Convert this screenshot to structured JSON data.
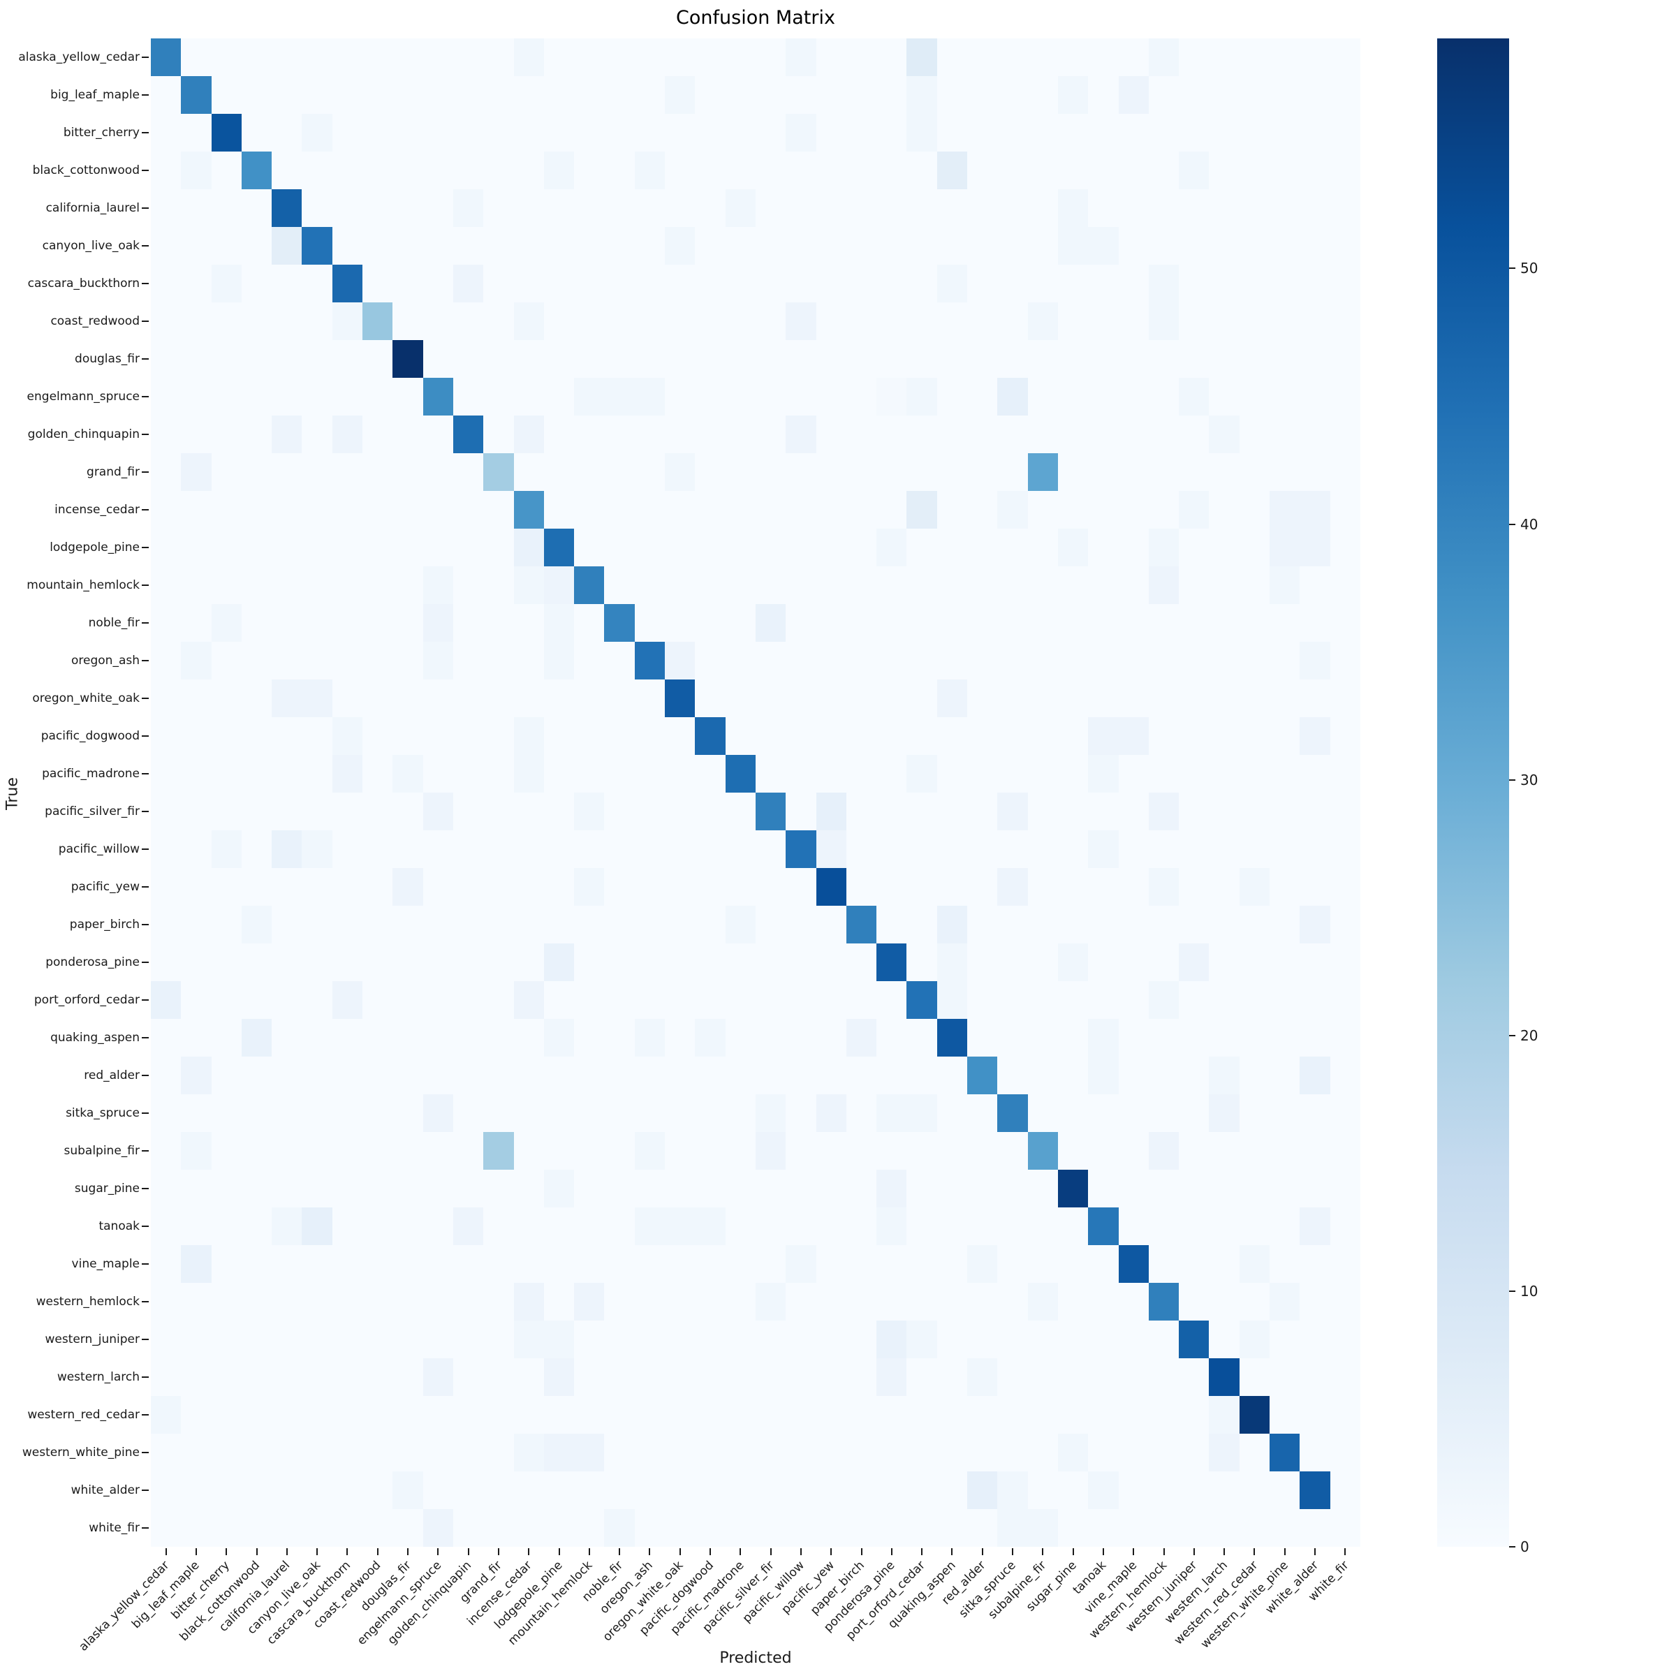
{
  "title": "Confusion Matrix",
  "xlabel": "Predicted",
  "ylabel": "True",
  "colors": {
    "background": "#ffffff",
    "text": "#1a1a1a",
    "colormap_low": "#f7fbff",
    "colormap_high": "#08306b"
  },
  "chart_data": {
    "type": "heatmap",
    "title": "Confusion Matrix",
    "xlabel": "Predicted",
    "ylabel": "True",
    "colormap": "Blues",
    "vmin": 0,
    "vmax": 59,
    "grid": false,
    "colorbar_position": "right",
    "colorbar_ticks": [
      0,
      10,
      20,
      30,
      40,
      50
    ],
    "labels": [
      "alaska_yellow_cedar",
      "big_leaf_maple",
      "bitter_cherry",
      "black_cottonwood",
      "california_laurel",
      "canyon_live_oak",
      "cascara_buckthorn",
      "coast_redwood",
      "douglas_fir",
      "engelmann_spruce",
      "golden_chinquapin",
      "grand_fir",
      "incense_cedar",
      "lodgepole_pine",
      "mountain_hemlock",
      "noble_fir",
      "oregon_ash",
      "oregon_white_oak",
      "pacific_dogwood",
      "pacific_madrone",
      "pacific_silver_fir",
      "pacific_willow",
      "pacific_yew",
      "paper_birch",
      "ponderosa_pine",
      "port_orford_cedar",
      "quaking_aspen",
      "red_alder",
      "sitka_spruce",
      "subalpine_fir",
      "sugar_pine",
      "tanoak",
      "vine_maple",
      "western_hemlock",
      "western_juniper",
      "western_larch",
      "western_red_cedar",
      "western_white_pine",
      "white_alder",
      "white_fir"
    ],
    "diagonal": [
      41,
      41,
      51,
      37,
      48,
      44,
      46,
      23,
      59,
      38,
      45,
      21,
      36,
      45,
      41,
      40,
      44,
      49,
      46,
      45,
      41,
      44,
      52,
      41,
      49,
      44,
      50,
      37,
      41,
      33,
      56,
      43,
      50,
      41,
      48,
      52,
      57,
      47,
      49,
      0
    ],
    "off_diagonal": [
      [
        0,
        12,
        2
      ],
      [
        0,
        21,
        2
      ],
      [
        0,
        25,
        7
      ],
      [
        0,
        33,
        2
      ],
      [
        1,
        17,
        2
      ],
      [
        1,
        25,
        2
      ],
      [
        1,
        30,
        2
      ],
      [
        1,
        32,
        3
      ],
      [
        2,
        5,
        2
      ],
      [
        2,
        21,
        2
      ],
      [
        2,
        25,
        2
      ],
      [
        3,
        1,
        2
      ],
      [
        3,
        13,
        2
      ],
      [
        3,
        16,
        2
      ],
      [
        3,
        26,
        6
      ],
      [
        3,
        34,
        2
      ],
      [
        4,
        10,
        2
      ],
      [
        4,
        19,
        2
      ],
      [
        4,
        30,
        2
      ],
      [
        5,
        4,
        6
      ],
      [
        5,
        17,
        2
      ],
      [
        5,
        30,
        2
      ],
      [
        5,
        31,
        2
      ],
      [
        6,
        2,
        2
      ],
      [
        6,
        10,
        3
      ],
      [
        6,
        26,
        2
      ],
      [
        6,
        33,
        2
      ],
      [
        7,
        6,
        2
      ],
      [
        7,
        12,
        2
      ],
      [
        7,
        21,
        3
      ],
      [
        7,
        29,
        2
      ],
      [
        7,
        33,
        2
      ],
      [
        9,
        14,
        2
      ],
      [
        9,
        15,
        2
      ],
      [
        9,
        16,
        2
      ],
      [
        9,
        24,
        1
      ],
      [
        9,
        25,
        2
      ],
      [
        9,
        28,
        5
      ],
      [
        9,
        34,
        2
      ],
      [
        10,
        4,
        3
      ],
      [
        10,
        6,
        3
      ],
      [
        10,
        12,
        3
      ],
      [
        10,
        21,
        3
      ],
      [
        10,
        35,
        2
      ],
      [
        11,
        1,
        3
      ],
      [
        11,
        17,
        2
      ],
      [
        11,
        29,
        32
      ],
      [
        12,
        25,
        6
      ],
      [
        12,
        28,
        2
      ],
      [
        12,
        34,
        2
      ],
      [
        12,
        37,
        3
      ],
      [
        12,
        38,
        3
      ],
      [
        13,
        12,
        4
      ],
      [
        13,
        24,
        2
      ],
      [
        13,
        30,
        2
      ],
      [
        13,
        33,
        2
      ],
      [
        13,
        37,
        3
      ],
      [
        13,
        38,
        3
      ],
      [
        14,
        9,
        2
      ],
      [
        14,
        12,
        2
      ],
      [
        14,
        13,
        3
      ],
      [
        14,
        33,
        3
      ],
      [
        14,
        37,
        2
      ],
      [
        15,
        2,
        2
      ],
      [
        15,
        9,
        3
      ],
      [
        15,
        13,
        2
      ],
      [
        15,
        20,
        4
      ],
      [
        16,
        1,
        2
      ],
      [
        16,
        9,
        2
      ],
      [
        16,
        13,
        2
      ],
      [
        16,
        17,
        3
      ],
      [
        16,
        38,
        2
      ],
      [
        17,
        4,
        3
      ],
      [
        17,
        5,
        3
      ],
      [
        17,
        26,
        3
      ],
      [
        18,
        6,
        2
      ],
      [
        18,
        12,
        2
      ],
      [
        18,
        31,
        3
      ],
      [
        18,
        32,
        3
      ],
      [
        18,
        38,
        3
      ],
      [
        19,
        6,
        3
      ],
      [
        19,
        8,
        2
      ],
      [
        19,
        12,
        2
      ],
      [
        19,
        25,
        2
      ],
      [
        19,
        31,
        2
      ],
      [
        20,
        9,
        3
      ],
      [
        20,
        14,
        2
      ],
      [
        20,
        22,
        5
      ],
      [
        20,
        28,
        3
      ],
      [
        20,
        33,
        3
      ],
      [
        21,
        2,
        2
      ],
      [
        21,
        4,
        4
      ],
      [
        21,
        5,
        2
      ],
      [
        21,
        22,
        3
      ],
      [
        21,
        31,
        2
      ],
      [
        22,
        8,
        3
      ],
      [
        22,
        14,
        2
      ],
      [
        22,
        28,
        3
      ],
      [
        22,
        33,
        2
      ],
      [
        22,
        36,
        2
      ],
      [
        23,
        3,
        2
      ],
      [
        23,
        19,
        2
      ],
      [
        23,
        26,
        4
      ],
      [
        23,
        38,
        3
      ],
      [
        24,
        13,
        4
      ],
      [
        24,
        26,
        2
      ],
      [
        24,
        30,
        2
      ],
      [
        24,
        34,
        3
      ],
      [
        25,
        0,
        4
      ],
      [
        25,
        6,
        3
      ],
      [
        25,
        12,
        3
      ],
      [
        25,
        26,
        2
      ],
      [
        25,
        33,
        2
      ],
      [
        26,
        3,
        4
      ],
      [
        26,
        13,
        2
      ],
      [
        26,
        16,
        2
      ],
      [
        26,
        18,
        2
      ],
      [
        26,
        23,
        3
      ],
      [
        26,
        31,
        2
      ],
      [
        27,
        1,
        3
      ],
      [
        27,
        31,
        2
      ],
      [
        27,
        35,
        2
      ],
      [
        27,
        38,
        4
      ],
      [
        28,
        9,
        3
      ],
      [
        28,
        20,
        2
      ],
      [
        28,
        22,
        3
      ],
      [
        28,
        24,
        2
      ],
      [
        28,
        25,
        2
      ],
      [
        28,
        35,
        3
      ],
      [
        29,
        1,
        2
      ],
      [
        29,
        11,
        21
      ],
      [
        29,
        16,
        2
      ],
      [
        29,
        20,
        3
      ],
      [
        29,
        33,
        3
      ],
      [
        30,
        13,
        2
      ],
      [
        30,
        24,
        3
      ],
      [
        31,
        4,
        2
      ],
      [
        31,
        5,
        5
      ],
      [
        31,
        10,
        3
      ],
      [
        31,
        16,
        2
      ],
      [
        31,
        17,
        2
      ],
      [
        31,
        18,
        2
      ],
      [
        31,
        24,
        2
      ],
      [
        31,
        38,
        3
      ],
      [
        32,
        1,
        4
      ],
      [
        32,
        21,
        2
      ],
      [
        32,
        27,
        2
      ],
      [
        32,
        36,
        2
      ],
      [
        33,
        12,
        3
      ],
      [
        33,
        14,
        3
      ],
      [
        33,
        20,
        2
      ],
      [
        33,
        29,
        2
      ],
      [
        33,
        37,
        2
      ],
      [
        34,
        12,
        2
      ],
      [
        34,
        13,
        2
      ],
      [
        34,
        24,
        4
      ],
      [
        34,
        25,
        2
      ],
      [
        34,
        36,
        2
      ],
      [
        35,
        9,
        3
      ],
      [
        35,
        13,
        3
      ],
      [
        35,
        24,
        3
      ],
      [
        35,
        27,
        2
      ],
      [
        36,
        0,
        2
      ],
      [
        36,
        35,
        2
      ],
      [
        37,
        12,
        2
      ],
      [
        37,
        13,
        3
      ],
      [
        37,
        14,
        3
      ],
      [
        37,
        30,
        2
      ],
      [
        37,
        35,
        3
      ],
      [
        38,
        8,
        2
      ],
      [
        38,
        27,
        5
      ],
      [
        38,
        28,
        2
      ],
      [
        38,
        31,
        2
      ],
      [
        39,
        9,
        3
      ],
      [
        39,
        15,
        2
      ],
      [
        39,
        28,
        2
      ],
      [
        39,
        29,
        2
      ]
    ]
  }
}
